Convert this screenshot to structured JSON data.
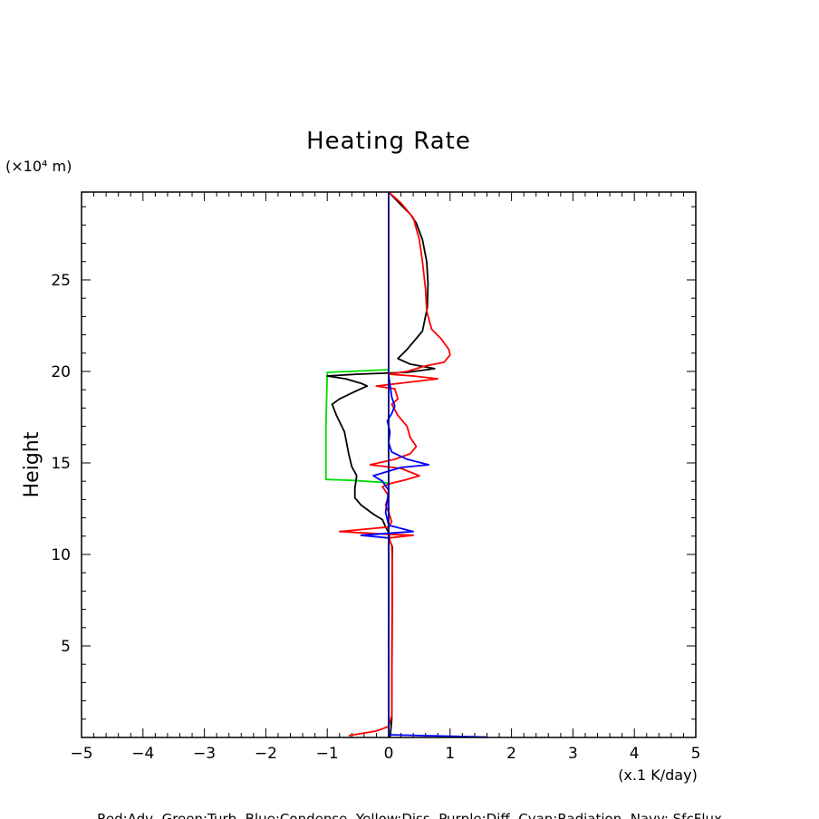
{
  "chart_data": {
    "type": "line",
    "title": "Heating Rate",
    "xlabel": "(x.1 K/day)",
    "ylabel": "Height",
    "y_units": "(×10⁴ m)",
    "xlim": [
      -5,
      5
    ],
    "ylim": [
      0,
      29.8
    ],
    "xticks": [
      -5,
      -4,
      -3,
      -2,
      -1,
      0,
      1,
      2,
      3,
      4,
      5
    ],
    "yticks": [
      5,
      10,
      15,
      20,
      25
    ],
    "legend_text": "Red:Adv, Green:Turb, Blue:Condense, Yellow:Diss, Purple:Diff, Cyan:Radiation, Navy: SfcFlux",
    "series": [
      {
        "name": "Green:Turb",
        "color": "#00dd00",
        "points": [
          [
            0,
            20.1
          ],
          [
            -0.3,
            20.05
          ],
          [
            -1.0,
            19.95
          ],
          [
            -1.02,
            17
          ],
          [
            -1.02,
            14.1
          ],
          [
            -0.6,
            14.05
          ],
          [
            -0.15,
            13.95
          ],
          [
            0,
            13.9
          ]
        ]
      },
      {
        "name": "Black",
        "color": "#000000",
        "points": [
          [
            0,
            29.8
          ],
          [
            0.2,
            29.1
          ],
          [
            0.35,
            28.6
          ],
          [
            0.45,
            28.1
          ],
          [
            0.55,
            27.2
          ],
          [
            0.62,
            26
          ],
          [
            0.64,
            24.8
          ],
          [
            0.63,
            23.5
          ],
          [
            0.55,
            22.2
          ],
          [
            0.3,
            21.2
          ],
          [
            0.15,
            20.7
          ],
          [
            0.35,
            20.4
          ],
          [
            0.75,
            20.15
          ],
          [
            0.3,
            19.95
          ],
          [
            -0.5,
            19.85
          ],
          [
            -1.0,
            19.75
          ],
          [
            -0.7,
            19.6
          ],
          [
            -0.45,
            19.35
          ],
          [
            -0.35,
            19.2
          ],
          [
            -0.55,
            18.9
          ],
          [
            -0.8,
            18.5
          ],
          [
            -0.92,
            18.2
          ],
          [
            -0.85,
            17.6
          ],
          [
            -0.72,
            16.7
          ],
          [
            -0.65,
            15.5
          ],
          [
            -0.6,
            14.8
          ],
          [
            -0.52,
            14.3
          ],
          [
            -0.55,
            13.6
          ],
          [
            -0.55,
            13.1
          ],
          [
            -0.45,
            12.7
          ],
          [
            -0.25,
            12.2
          ],
          [
            -0.1,
            11.9
          ],
          [
            -0.05,
            11.5
          ],
          [
            0,
            11.2
          ],
          [
            0.02,
            10.7
          ],
          [
            0.05,
            10.5
          ],
          [
            0.06,
            10.4
          ],
          [
            0.05,
            1.0
          ],
          [
            0.03,
            0.2
          ],
          [
            0.02,
            0
          ]
        ]
      },
      {
        "name": "Red:Adv",
        "color": "#ff0000",
        "points": [
          [
            0,
            29.8
          ],
          [
            0.2,
            29.2
          ],
          [
            0.4,
            28.4
          ],
          [
            0.5,
            27.2
          ],
          [
            0.55,
            26
          ],
          [
            0.6,
            24.5
          ],
          [
            0.62,
            23.3
          ],
          [
            0.7,
            22.3
          ],
          [
            0.85,
            21.8
          ],
          [
            0.98,
            21.2
          ],
          [
            1.0,
            20.9
          ],
          [
            0.9,
            20.5
          ],
          [
            0.6,
            20.3
          ],
          [
            0.3,
            20.0
          ],
          [
            0,
            19.85
          ],
          [
            0.4,
            19.75
          ],
          [
            0.8,
            19.6
          ],
          [
            0.3,
            19.4
          ],
          [
            -0.2,
            19.2
          ],
          [
            0.1,
            19.05
          ],
          [
            0.15,
            18.5
          ],
          [
            0.05,
            18.2
          ],
          [
            0.15,
            17.6
          ],
          [
            0.3,
            17.0
          ],
          [
            0.35,
            16.4
          ],
          [
            0.45,
            15.9
          ],
          [
            0.35,
            15.5
          ],
          [
            0.1,
            15.2
          ],
          [
            -0.3,
            14.9
          ],
          [
            0.2,
            14.7
          ],
          [
            0.5,
            14.3
          ],
          [
            0.3,
            14.1
          ],
          [
            0.05,
            13.9
          ],
          [
            -0.1,
            13.7
          ],
          [
            0.0,
            13.2
          ],
          [
            -0.05,
            12.7
          ],
          [
            0.0,
            12.3
          ],
          [
            0.05,
            11.8
          ],
          [
            0.0,
            11.5
          ],
          [
            -0.8,
            11.25
          ],
          [
            0.0,
            11.1
          ],
          [
            0.4,
            11.05
          ],
          [
            0.0,
            10.9
          ],
          [
            0.05,
            10.5
          ],
          [
            0.06,
            9.5
          ],
          [
            0.05,
            1.2
          ],
          [
            0.0,
            0.6
          ],
          [
            -0.2,
            0.35
          ],
          [
            -0.65,
            0.1
          ]
        ]
      },
      {
        "name": "Blue:Condense",
        "color": "#0000ff",
        "points": [
          [
            0,
            19.8
          ],
          [
            0.05,
            18.6
          ],
          [
            0.1,
            18.1
          ],
          [
            0.05,
            17.7
          ],
          [
            -0.02,
            17.3
          ],
          [
            0.02,
            16.7
          ],
          [
            0.0,
            16.1
          ],
          [
            0.05,
            15.6
          ],
          [
            0.3,
            15.2
          ],
          [
            0.65,
            14.9
          ],
          [
            0.2,
            14.75
          ],
          [
            -0.25,
            14.3
          ],
          [
            -0.1,
            14.0
          ],
          [
            0.0,
            13.5
          ],
          [
            -0.05,
            12.3
          ],
          [
            0.0,
            11.6
          ],
          [
            0.4,
            11.25
          ],
          [
            -0.45,
            11.05
          ],
          [
            0.0,
            10.9
          ],
          [
            0.0,
            0.15
          ],
          [
            0.6,
            0.1
          ],
          [
            1.6,
            0.02
          ]
        ]
      },
      {
        "name": "Navy: SfcFlux",
        "color": "#000080",
        "points": [
          [
            0,
            29.8
          ],
          [
            0,
            0
          ]
        ]
      }
    ]
  }
}
